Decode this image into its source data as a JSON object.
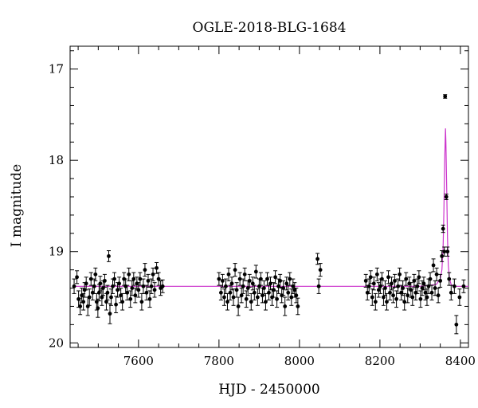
{
  "chart_data": {
    "type": "scatter",
    "title": "OGLE-2018-BLG-1684",
    "xlabel": "HJD - 2450000",
    "ylabel": "I magnitude",
    "xlim": [
      7430,
      8420
    ],
    "ylim": [
      20.05,
      16.75
    ],
    "y_inverted": true,
    "xticks": [
      7600,
      7800,
      8000,
      8200,
      8400
    ],
    "yticks": [
      17,
      18,
      19,
      20
    ],
    "grid": false,
    "legend": "none",
    "baseline_mag": 19.38,
    "colors": {
      "points": "#000000",
      "model": "#cc33cc"
    },
    "series": [
      {
        "points": [
          [
            7440,
            19.38,
            0.08
          ],
          [
            7447,
            19.28,
            0.07
          ],
          [
            7451,
            19.52,
            0.09
          ],
          [
            7455,
            19.6,
            0.09
          ],
          [
            7459,
            19.48,
            0.08
          ],
          [
            7463,
            19.55,
            0.09
          ],
          [
            7466,
            19.42,
            0.08
          ],
          [
            7470,
            19.35,
            0.07
          ],
          [
            7474,
            19.6,
            0.1
          ],
          [
            7478,
            19.5,
            0.09
          ],
          [
            7482,
            19.3,
            0.07
          ],
          [
            7486,
            19.45,
            0.08
          ],
          [
            7490,
            19.38,
            0.08
          ],
          [
            7493,
            19.25,
            0.07
          ],
          [
            7496,
            19.55,
            0.09
          ],
          [
            7499,
            19.62,
            0.1
          ],
          [
            7502,
            19.45,
            0.09
          ],
          [
            7505,
            19.35,
            0.08
          ],
          [
            7509,
            19.5,
            0.09
          ],
          [
            7512,
            19.4,
            0.08
          ],
          [
            7516,
            19.32,
            0.07
          ],
          [
            7520,
            19.55,
            0.09
          ],
          [
            7523,
            19.45,
            0.08
          ],
          [
            7526,
            19.05,
            0.06
          ],
          [
            7529,
            19.68,
            0.11
          ],
          [
            7532,
            19.5,
            0.09
          ],
          [
            7536,
            19.38,
            0.08
          ],
          [
            7540,
            19.3,
            0.07
          ],
          [
            7544,
            19.58,
            0.09
          ],
          [
            7548,
            19.42,
            0.08
          ],
          [
            7552,
            19.35,
            0.07
          ],
          [
            7556,
            19.48,
            0.08
          ],
          [
            7560,
            19.55,
            0.09
          ],
          [
            7564,
            19.3,
            0.07
          ],
          [
            7568,
            19.38,
            0.08
          ],
          [
            7572,
            19.45,
            0.08
          ],
          [
            7576,
            19.25,
            0.07
          ],
          [
            7580,
            19.52,
            0.09
          ],
          [
            7584,
            19.4,
            0.08
          ],
          [
            7588,
            19.3,
            0.07
          ],
          [
            7592,
            19.48,
            0.08
          ],
          [
            7596,
            19.35,
            0.07
          ],
          [
            7600,
            19.42,
            0.08
          ],
          [
            7604,
            19.3,
            0.07
          ],
          [
            7608,
            19.55,
            0.09
          ],
          [
            7612,
            19.38,
            0.08
          ],
          [
            7616,
            19.2,
            0.07
          ],
          [
            7620,
            19.45,
            0.08
          ],
          [
            7624,
            19.32,
            0.07
          ],
          [
            7628,
            19.52,
            0.09
          ],
          [
            7632,
            19.38,
            0.08
          ],
          [
            7636,
            19.25,
            0.07
          ],
          [
            7640,
            19.42,
            0.08
          ],
          [
            7645,
            19.18,
            0.06
          ],
          [
            7650,
            19.3,
            0.07
          ],
          [
            7655,
            19.4,
            0.08
          ],
          [
            7660,
            19.38,
            0.07
          ],
          [
            7800,
            19.3,
            0.07
          ],
          [
            7805,
            19.45,
            0.08
          ],
          [
            7809,
            19.32,
            0.07
          ],
          [
            7813,
            19.5,
            0.09
          ],
          [
            7817,
            19.38,
            0.08
          ],
          [
            7821,
            19.55,
            0.09
          ],
          [
            7824,
            19.25,
            0.07
          ],
          [
            7828,
            19.45,
            0.08
          ],
          [
            7832,
            19.35,
            0.07
          ],
          [
            7836,
            19.5,
            0.09
          ],
          [
            7840,
            19.2,
            0.07
          ],
          [
            7844,
            19.42,
            0.08
          ],
          [
            7848,
            19.6,
            0.1
          ],
          [
            7852,
            19.3,
            0.07
          ],
          [
            7856,
            19.48,
            0.08
          ],
          [
            7860,
            19.38,
            0.08
          ],
          [
            7864,
            19.25,
            0.07
          ],
          [
            7868,
            19.52,
            0.09
          ],
          [
            7872,
            19.4,
            0.08
          ],
          [
            7876,
            19.32,
            0.07
          ],
          [
            7880,
            19.55,
            0.09
          ],
          [
            7884,
            19.35,
            0.07
          ],
          [
            7888,
            19.45,
            0.08
          ],
          [
            7892,
            19.22,
            0.07
          ],
          [
            7896,
            19.5,
            0.09
          ],
          [
            7900,
            19.38,
            0.08
          ],
          [
            7904,
            19.3,
            0.07
          ],
          [
            7908,
            19.48,
            0.08
          ],
          [
            7912,
            19.4,
            0.08
          ],
          [
            7916,
            19.55,
            0.09
          ],
          [
            7920,
            19.3,
            0.07
          ],
          [
            7924,
            19.45,
            0.08
          ],
          [
            7928,
            19.35,
            0.07
          ],
          [
            7932,
            19.5,
            0.09
          ],
          [
            7936,
            19.42,
            0.08
          ],
          [
            7940,
            19.28,
            0.07
          ],
          [
            7944,
            19.52,
            0.09
          ],
          [
            7948,
            19.38,
            0.08
          ],
          [
            7952,
            19.32,
            0.07
          ],
          [
            7956,
            19.48,
            0.08
          ],
          [
            7960,
            19.4,
            0.08
          ],
          [
            7964,
            19.6,
            0.1
          ],
          [
            7968,
            19.35,
            0.07
          ],
          [
            7972,
            19.45,
            0.08
          ],
          [
            7976,
            19.3,
            0.07
          ],
          [
            7980,
            19.5,
            0.09
          ],
          [
            7984,
            19.38,
            0.08
          ],
          [
            7988,
            19.42,
            0.08
          ],
          [
            7992,
            19.48,
            0.08
          ],
          [
            7996,
            19.6,
            0.09
          ],
          [
            8045,
            19.08,
            0.06
          ],
          [
            8048,
            19.38,
            0.08
          ],
          [
            8052,
            19.2,
            0.07
          ],
          [
            8165,
            19.32,
            0.07
          ],
          [
            8169,
            19.45,
            0.08
          ],
          [
            8173,
            19.38,
            0.08
          ],
          [
            8177,
            19.28,
            0.07
          ],
          [
            8181,
            19.5,
            0.09
          ],
          [
            8185,
            19.35,
            0.07
          ],
          [
            8189,
            19.55,
            0.09
          ],
          [
            8193,
            19.25,
            0.07
          ],
          [
            8197,
            19.42,
            0.08
          ],
          [
            8201,
            19.38,
            0.08
          ],
          [
            8205,
            19.3,
            0.07
          ],
          [
            8209,
            19.5,
            0.09
          ],
          [
            8213,
            19.4,
            0.08
          ],
          [
            8217,
            19.55,
            0.09
          ],
          [
            8221,
            19.28,
            0.07
          ],
          [
            8225,
            19.45,
            0.08
          ],
          [
            8229,
            19.35,
            0.07
          ],
          [
            8233,
            19.48,
            0.08
          ],
          [
            8237,
            19.32,
            0.07
          ],
          [
            8241,
            19.52,
            0.09
          ],
          [
            8245,
            19.38,
            0.08
          ],
          [
            8249,
            19.25,
            0.07
          ],
          [
            8253,
            19.45,
            0.08
          ],
          [
            8257,
            19.4,
            0.08
          ],
          [
            8261,
            19.55,
            0.09
          ],
          [
            8265,
            19.3,
            0.07
          ],
          [
            8269,
            19.48,
            0.08
          ],
          [
            8273,
            19.35,
            0.07
          ],
          [
            8277,
            19.42,
            0.08
          ],
          [
            8281,
            19.5,
            0.09
          ],
          [
            8285,
            19.32,
            0.07
          ],
          [
            8289,
            19.45,
            0.08
          ],
          [
            8293,
            19.38,
            0.08
          ],
          [
            8297,
            19.28,
            0.07
          ],
          [
            8301,
            19.52,
            0.09
          ],
          [
            8305,
            19.4,
            0.08
          ],
          [
            8309,
            19.35,
            0.07
          ],
          [
            8313,
            19.45,
            0.08
          ],
          [
            8317,
            19.5,
            0.09
          ],
          [
            8321,
            19.38,
            0.08
          ],
          [
            8325,
            19.3,
            0.07
          ],
          [
            8329,
            19.45,
            0.08
          ],
          [
            8333,
            19.15,
            0.07
          ],
          [
            8337,
            19.4,
            0.08
          ],
          [
            8341,
            19.25,
            0.07
          ],
          [
            8345,
            19.48,
            0.08
          ],
          [
            8350,
            19.32,
            0.07
          ],
          [
            8354,
            19.05,
            0.06
          ],
          [
            8357,
            18.75,
            0.04
          ],
          [
            8360,
            19.0,
            0.05
          ],
          [
            8362,
            17.3,
            0.02
          ],
          [
            8365,
            18.4,
            0.03
          ],
          [
            8368,
            19.0,
            0.05
          ],
          [
            8372,
            19.3,
            0.07
          ],
          [
            8377,
            19.45,
            0.08
          ],
          [
            8385,
            19.38,
            0.08
          ],
          [
            8390,
            19.8,
            0.1
          ],
          [
            8398,
            19.5,
            0.09
          ],
          [
            8408,
            19.38,
            0.07
          ]
        ]
      }
    ],
    "model": {
      "x": [
        7440,
        8300,
        8340,
        8350,
        8354,
        8357,
        8359,
        8361,
        8363,
        8364,
        8366,
        8368,
        8370,
        8373,
        8377,
        8382,
        8390,
        8420
      ],
      "y": [
        19.38,
        19.38,
        19.36,
        19.3,
        19.2,
        18.95,
        18.55,
        18.0,
        17.65,
        17.8,
        18.3,
        18.85,
        19.15,
        19.3,
        19.36,
        19.38,
        19.38,
        19.38
      ]
    }
  }
}
